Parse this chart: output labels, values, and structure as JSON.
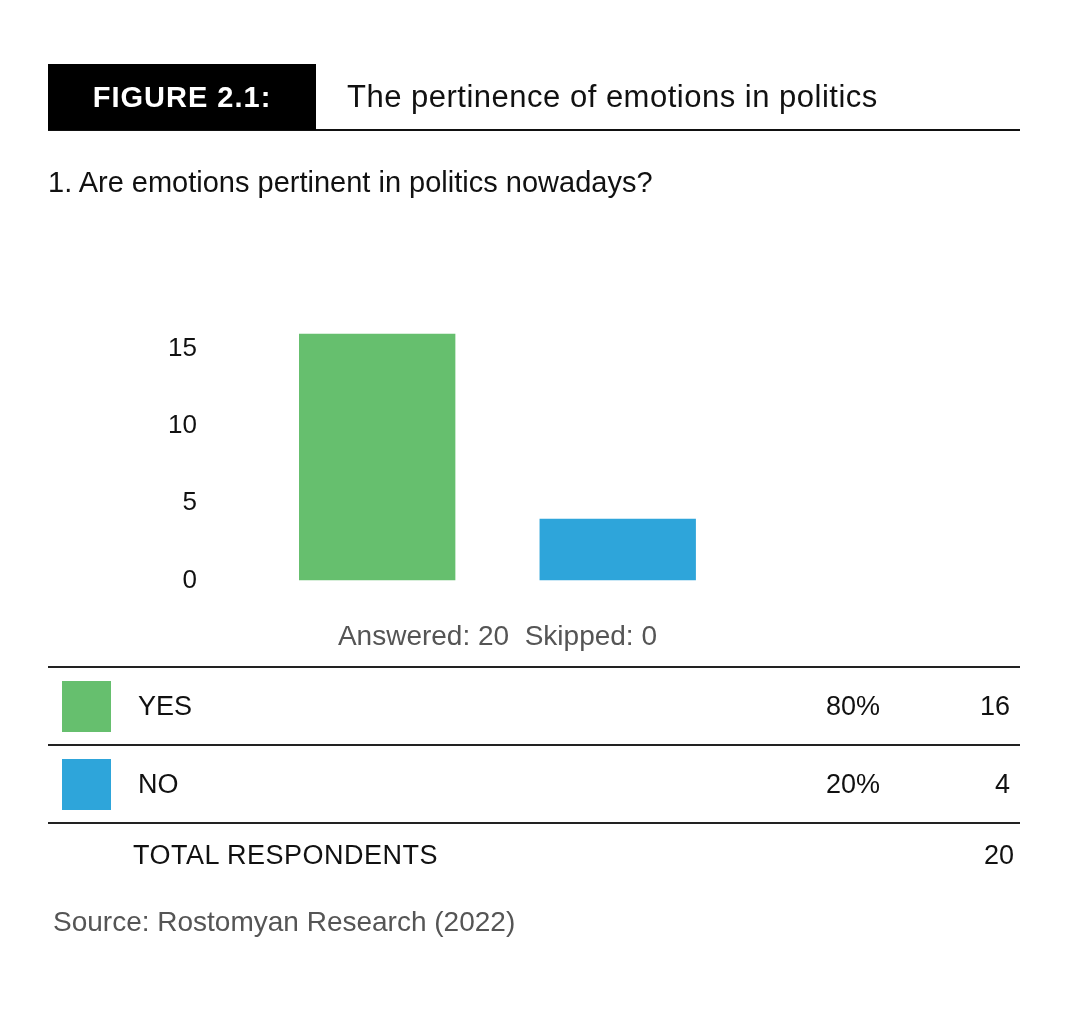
{
  "chart_data": [
    {
      "type": "bar",
      "title": "FIGURE 2.1:",
      "subtitle": "The pertinence of emotions in politics",
      "xlabel": "Answered: 20  Skipped: 0",
      "categories": [
        null,
        null
      ],
      "values": [
        16,
        4
      ],
      "colors": [
        "#66bf6e",
        "#2ea5da"
      ],
      "ylim": [
        0,
        16
      ],
      "yticks": [
        0,
        5,
        10,
        15
      ],
      "tick_labels": "y",
      "annotations": [
        "1. Are emotions pertinent in politics nowadays?",
        "Source: Rostomyan Research (2022)"
      ]
    },
    {
      "type": "other",
      "annotations": [
        "YES",
        "80%",
        "16",
        "NO",
        "20%",
        "4",
        "TOTAL RESPONDENTS",
        "20"
      ]
    }
  ]
}
